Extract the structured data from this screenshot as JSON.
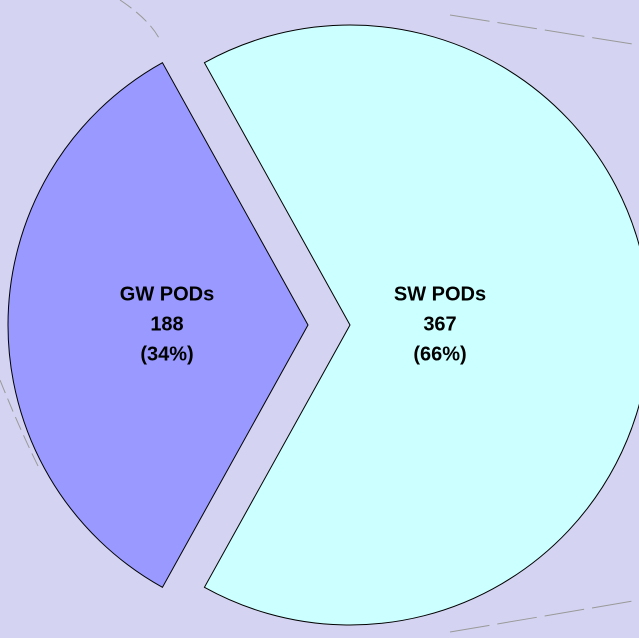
{
  "chart_data": {
    "type": "pie",
    "categories": [
      "GW PODs",
      "SW PODs"
    ],
    "values": [
      188,
      367
    ],
    "percent_labels": [
      "(34%)",
      "(66%)"
    ],
    "colors": [
      "#9999ff",
      "#ccffff"
    ]
  }
}
